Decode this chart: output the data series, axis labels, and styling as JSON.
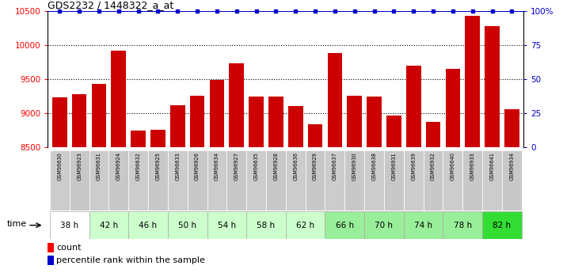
{
  "title": "GDS2232 / 1448322_a_at",
  "samples": [
    "GSM96630",
    "GSM96923",
    "GSM96631",
    "GSM96924",
    "GSM96632",
    "GSM96925",
    "GSM96633",
    "GSM96926",
    "GSM96634",
    "GSM96927",
    "GSM96635",
    "GSM96928",
    "GSM96636",
    "GSM96929",
    "GSM96637",
    "GSM96930",
    "GSM96638",
    "GSM96931",
    "GSM96639",
    "GSM96932",
    "GSM96640",
    "GSM96933",
    "GSM96641",
    "GSM96934"
  ],
  "counts": [
    9230,
    9280,
    9430,
    9920,
    8750,
    8760,
    9120,
    9260,
    9490,
    9730,
    9250,
    9240,
    9110,
    8840,
    9880,
    9260,
    9250,
    8970,
    9700,
    8870,
    9650,
    10430,
    10280,
    9060
  ],
  "percentile_ranks": [
    100,
    100,
    100,
    100,
    100,
    100,
    100,
    100,
    100,
    100,
    100,
    100,
    100,
    100,
    100,
    100,
    100,
    100,
    100,
    100,
    100,
    100,
    100,
    100
  ],
  "time_labels": [
    "38 h",
    "42 h",
    "46 h",
    "50 h",
    "54 h",
    "58 h",
    "62 h",
    "66 h",
    "70 h",
    "74 h",
    "78 h",
    "82 h"
  ],
  "time_group_colors": [
    "#ffffff",
    "#ccffcc",
    "#ccffcc",
    "#ccffcc",
    "#ccffcc",
    "#ccffcc",
    "#ccffcc",
    "#99ee99",
    "#99ee99",
    "#99ee99",
    "#99ee99",
    "#33dd33"
  ],
  "bar_color": "#cc0000",
  "percentile_color": "#0000cc",
  "ymin": 8500,
  "ymax": 10500,
  "yticks": [
    8500,
    9000,
    9500,
    10000,
    10500
  ],
  "right_yticks_vals": [
    0,
    25,
    50,
    75,
    100
  ],
  "right_yticklabels": [
    "0",
    "25",
    "50",
    "75",
    "100%"
  ],
  "background_color": "#ffffff"
}
